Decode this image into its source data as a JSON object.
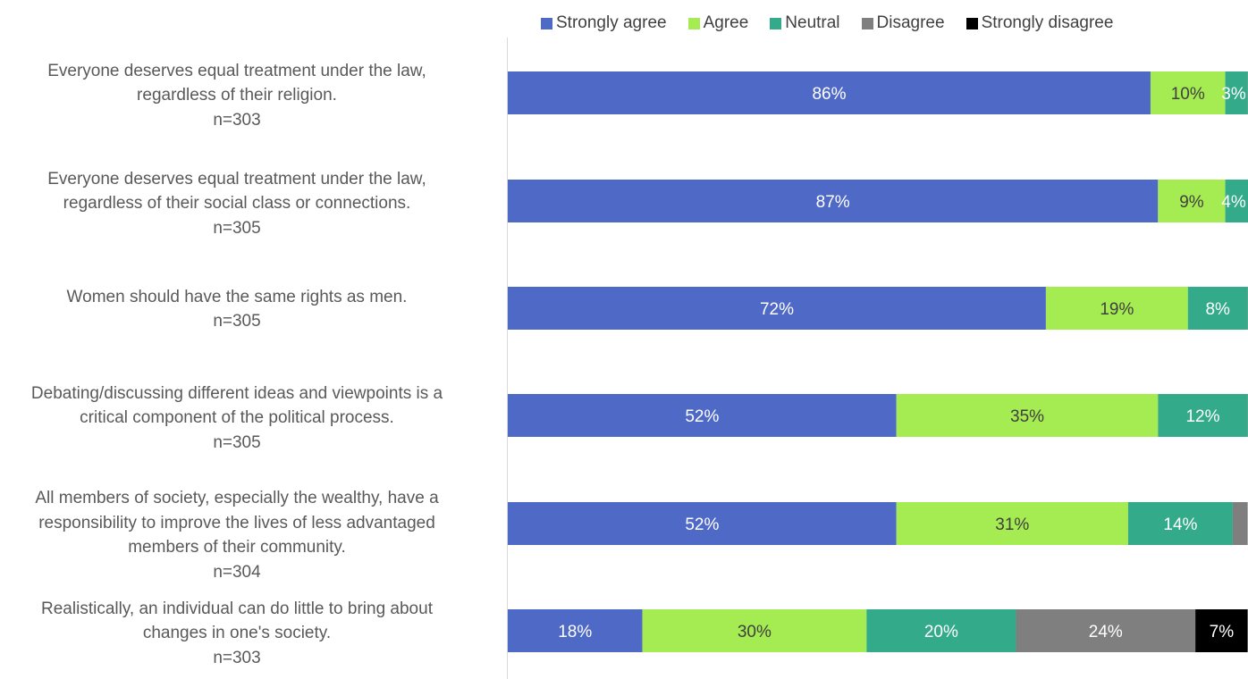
{
  "chart_data": {
    "type": "bar",
    "orientation": "horizontal",
    "stacked": true,
    "legend_position": "top",
    "grid": false,
    "xlim": [
      0,
      100
    ],
    "categories": [
      "Everyone deserves equal treatment under the law, regardless of their religion.",
      "Everyone deserves equal treatment under the law, regardless of their social class or connections.",
      "Women should have the same rights as men.",
      "Debating/discussing different ideas and viewpoints is a critical component of the political process.",
      "All members of society, especially the wealthy, have a responsibility to improve the lives of less advantaged members of their community.",
      "Realistically, an individual can do little to bring about changes in one's society."
    ],
    "category_label_lines": [
      [
        "Everyone deserves equal treatment under the law,",
        "regardless of their religion.",
        "n=303"
      ],
      [
        "Everyone deserves equal treatment under the law,",
        "regardless of their social class or connections.",
        "n=305"
      ],
      [
        "Women should have the same rights as men.",
        "n=305"
      ],
      [
        "Debating/discussing different ideas and viewpoints is a",
        "critical component of the political process.",
        "n=305"
      ],
      [
        "All members of society, especially the wealthy, have a",
        "responsibility to improve the lives of less advantaged",
        "members of their community.",
        "n=304"
      ],
      [
        "Realistically, an individual can do little to bring about",
        "changes in one's society.",
        "n=303"
      ]
    ],
    "series": [
      {
        "name": "Strongly agree",
        "color": "#4F69C6",
        "label_color": "#ffffff",
        "values": [
          86,
          87,
          72,
          52,
          52,
          18
        ],
        "labels": [
          "86%",
          "87%",
          "72%",
          "52%",
          "52%",
          "18%"
        ]
      },
      {
        "name": "Agree",
        "color": "#A5EB52",
        "label_color": "#404040",
        "values": [
          10,
          9,
          19,
          35,
          31,
          30
        ],
        "labels": [
          "10%",
          "9%",
          "19%",
          "35%",
          "31%",
          "30%"
        ]
      },
      {
        "name": "Neutral",
        "color": "#33AB8A",
        "label_color": "#ffffff",
        "values": [
          3,
          4,
          8,
          12,
          14,
          20
        ],
        "labels": [
          "3%",
          "4%",
          "8%",
          "12%",
          "14%",
          "20%"
        ]
      },
      {
        "name": "Disagree",
        "color": "#7F7F7F",
        "label_color": "#ffffff",
        "values": [
          0.5,
          0.5,
          1,
          1,
          2,
          24
        ],
        "labels": [
          "",
          "",
          "",
          "",
          "",
          "24%"
        ]
      },
      {
        "name": "Strongly disagree",
        "color": "#000000",
        "label_color": "#ffffff",
        "values": [
          0,
          0,
          0,
          0,
          0,
          7
        ],
        "labels": [
          "",
          "",
          "",
          "",
          "",
          "7%"
        ]
      }
    ]
  }
}
